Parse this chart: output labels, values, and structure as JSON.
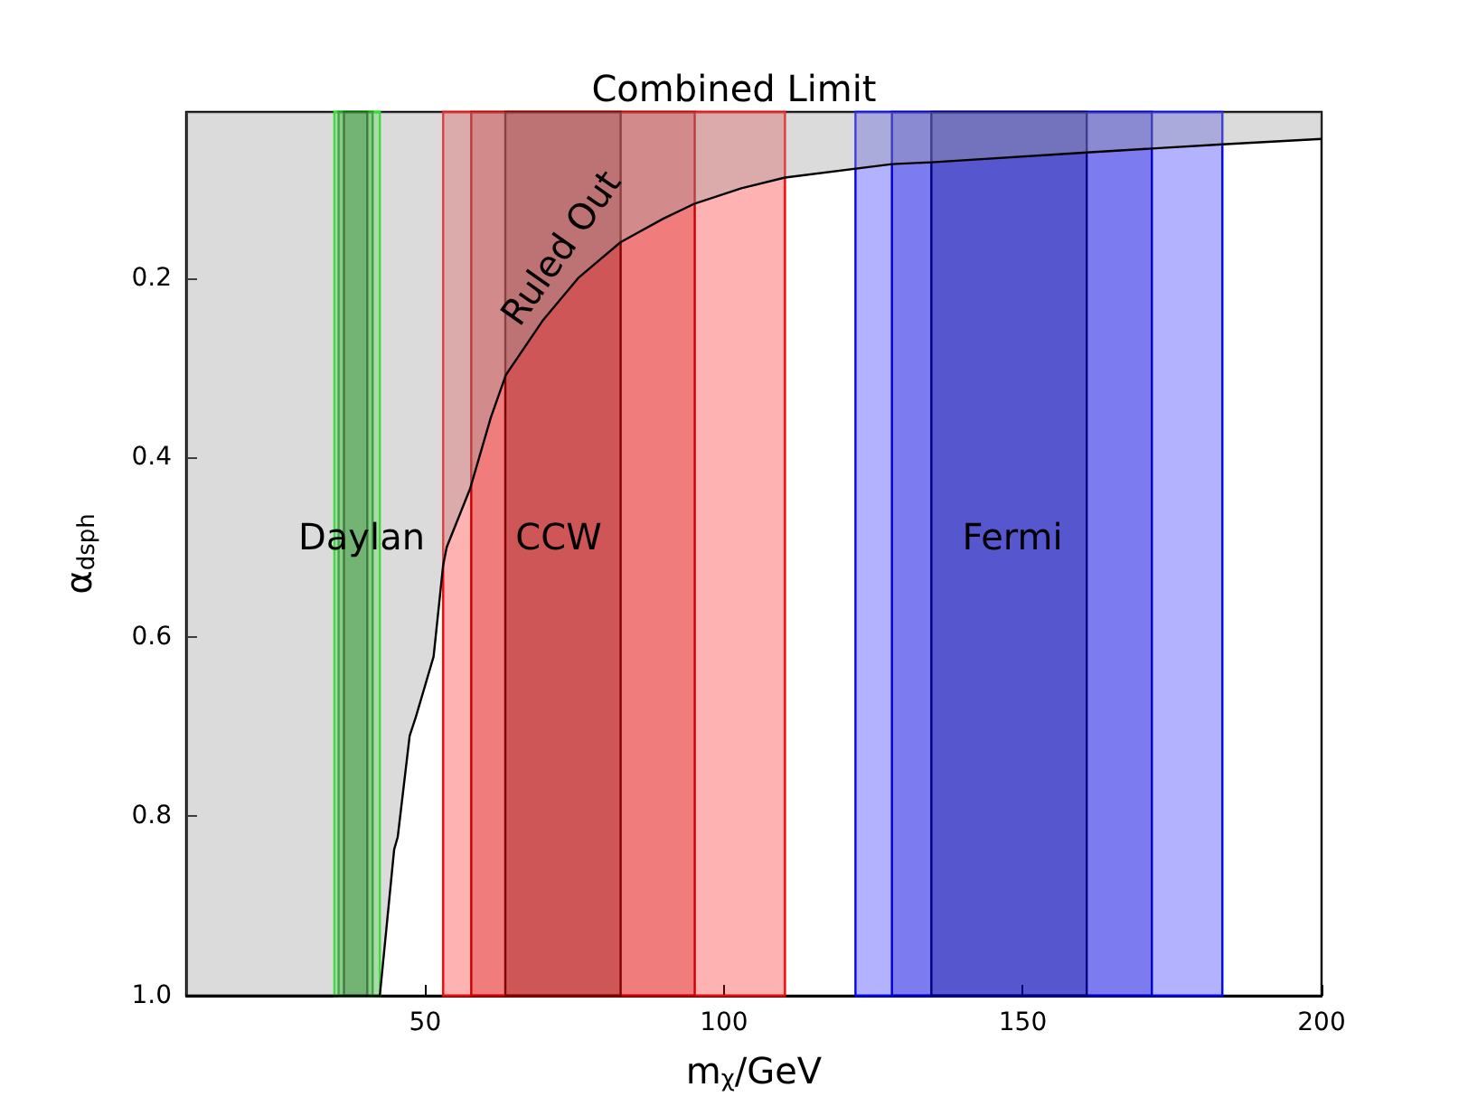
{
  "chart_data": {
    "type": "area",
    "title": "Combined Limit",
    "xlabel": "m$_{χ}$/GeV",
    "ylabel": "α$_{dsph}$",
    "xlim": [
      10,
      200
    ],
    "xticks": [
      50,
      100,
      150,
      200
    ],
    "ylim": [
      1.0,
      0.015
    ],
    "yticks": [
      0.2,
      0.4,
      0.6,
      0.8,
      {
        "value": 1.0,
        "label": "1.0"
      }
    ],
    "grid": false,
    "series": [
      {
        "color": "#cccccc",
        "x": [
          10,
          42.4,
          44.8,
          45.4,
          47.4,
          48.4,
          51.4,
          53,
          53.6,
          57.5,
          61,
          63.5,
          69.6,
          75.6,
          82.7,
          89.8,
          95.1,
          102.9,
          110.2,
          128.1,
          134.7,
          160.7,
          183.4,
          200
        ],
        "values": [
          1.0,
          1.0,
          0.837,
          0.823,
          0.71,
          0.69,
          0.622,
          0.52,
          0.5,
          0.435,
          0.355,
          0.308,
          0.248,
          0.2,
          0.16,
          0.134,
          0.117,
          0.1,
          0.088,
          0.073,
          0.071,
          0.06,
          0.051,
          0.045
        ]
      }
    ],
    "bands": [
      {
        "axis": "x",
        "from": 34.8,
        "to": 42.4,
        "color": "#00ff00"
      },
      {
        "axis": "x",
        "from": 35.5,
        "to": 41.2,
        "color": "#00aa00"
      },
      {
        "axis": "x",
        "from": 36.4,
        "to": 40.3,
        "color": "#006400"
      },
      {
        "axis": "x",
        "from": 53.0,
        "to": 110.2,
        "color": "#ff0000"
      },
      {
        "axis": "x",
        "from": 57.7,
        "to": 95.1,
        "color": "#cc0000"
      },
      {
        "axis": "x",
        "from": 63.4,
        "to": 82.7,
        "color": "#800000"
      },
      {
        "axis": "x",
        "from": 122.0,
        "to": 183.4,
        "color": "#0000ff"
      },
      {
        "axis": "x",
        "from": 128.1,
        "to": 171.6,
        "color": "#0000cc"
      },
      {
        "axis": "x",
        "from": 134.7,
        "to": 160.7,
        "color": "#000080"
      }
    ],
    "annotations": [
      "Ruled Out",
      "Daylan",
      "CCW",
      "Fermi"
    ]
  }
}
